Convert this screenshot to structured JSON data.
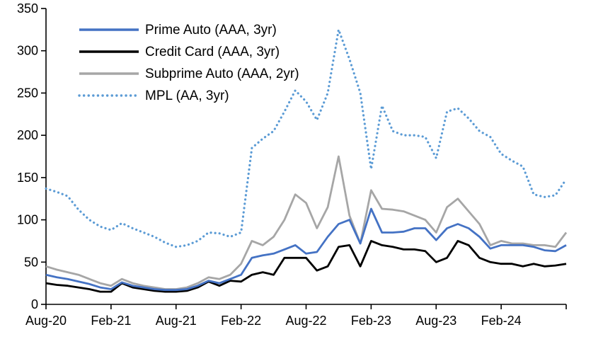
{
  "chart_data": {
    "type": "line",
    "title": "",
    "xlabel": "",
    "ylabel": "",
    "ylim": [
      0,
      350
    ],
    "y_ticks": [
      0,
      50,
      100,
      150,
      200,
      250,
      300,
      350
    ],
    "x_frequency": "monthly",
    "x_range": [
      "Aug-2020",
      "Aug-2024"
    ],
    "grid": false,
    "legend_position": "top-left-inside",
    "x_ticks": [
      {
        "index": 0,
        "label": "Aug-20"
      },
      {
        "index": 6,
        "label": "Feb-21"
      },
      {
        "index": 12,
        "label": "Aug-21"
      },
      {
        "index": 18,
        "label": "Feb-22"
      },
      {
        "index": 24,
        "label": "Aug-22"
      },
      {
        "index": 30,
        "label": "Feb-23"
      },
      {
        "index": 36,
        "label": "Aug-23"
      },
      {
        "index": 42,
        "label": "Feb-24"
      },
      {
        "index": 48,
        "label": ""
      }
    ],
    "series": [
      {
        "name": "Prime Auto (AAA, 3yr)",
        "color": "#4472C4",
        "style": "solid",
        "values": [
          35,
          32,
          30,
          27,
          24,
          20,
          18,
          26,
          22,
          20,
          18,
          17,
          17,
          18,
          22,
          28,
          25,
          30,
          35,
          55,
          58,
          60,
          65,
          70,
          60,
          62,
          80,
          95,
          100,
          72,
          113,
          85,
          85,
          86,
          90,
          90,
          76,
          90,
          95,
          90,
          80,
          66,
          70,
          70,
          70,
          68,
          64,
          63,
          70
        ]
      },
      {
        "name": "Credit Card (AAA, 3yr)",
        "color": "#000000",
        "style": "solid",
        "values": [
          25,
          23,
          22,
          20,
          18,
          15,
          15,
          25,
          20,
          18,
          16,
          15,
          15,
          16,
          20,
          27,
          22,
          28,
          27,
          35,
          38,
          35,
          55,
          55,
          55,
          40,
          45,
          68,
          70,
          45,
          75,
          70,
          68,
          65,
          65,
          63,
          50,
          55,
          75,
          70,
          55,
          50,
          48,
          48,
          45,
          48,
          45,
          46,
          48
        ]
      },
      {
        "name": "Subprime Auto (AAA, 2yr)",
        "color": "#A6A6A6",
        "style": "solid",
        "values": [
          45,
          41,
          38,
          35,
          30,
          25,
          22,
          30,
          25,
          22,
          20,
          18,
          18,
          20,
          25,
          32,
          30,
          35,
          48,
          75,
          70,
          80,
          100,
          130,
          120,
          90,
          115,
          175,
          105,
          72,
          135,
          113,
          112,
          110,
          105,
          100,
          85,
          115,
          125,
          110,
          95,
          70,
          75,
          72,
          72,
          70,
          70,
          68,
          85
        ]
      },
      {
        "name": "MPL (AA, 3yr)",
        "color": "#5B9BD5",
        "style": "dotted",
        "values": [
          137,
          133,
          128,
          112,
          100,
          92,
          88,
          96,
          90,
          85,
          80,
          73,
          68,
          70,
          75,
          85,
          84,
          80,
          85,
          185,
          196,
          205,
          228,
          253,
          240,
          218,
          250,
          325,
          290,
          250,
          160,
          235,
          205,
          200,
          200,
          198,
          173,
          228,
          232,
          220,
          205,
          198,
          178,
          170,
          163,
          130,
          127,
          129,
          148
        ]
      }
    ]
  }
}
